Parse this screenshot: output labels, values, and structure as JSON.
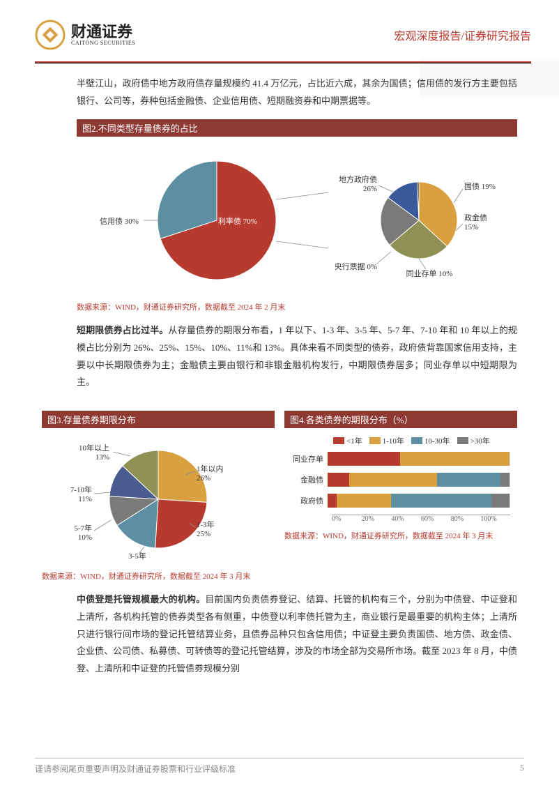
{
  "header": {
    "company_cn": "财通证券",
    "company_en": "CAITONG SECURITIES",
    "report_type": "宏观深度报告/证券研究报告"
  },
  "para1": "半壁江山，政府债中地方政府债存量规模约 41.4 万亿元，占比近六成，其余为国债；信用债的发行方主要包括银行、公司等，券种包括金融债、企业信用债、短期融资券和中期票据等。",
  "fig2": {
    "title": "图2.不同类型存量债券的占比",
    "caption": "数据来源：WIND，财通证券研究所，数据截至 2024 年 2 月末",
    "pie_left": {
      "slices": [
        {
          "label": "利率债 70%",
          "value": 70,
          "color": "#b73a2e"
        },
        {
          "label": "信用债 30%",
          "value": 30,
          "color": "#5b8fa1"
        }
      ]
    },
    "pie_right": {
      "slices": [
        {
          "label": "地方政府债 26%",
          "value": 26,
          "color": "#d9a03f"
        },
        {
          "label": "国债 19%",
          "value": 19,
          "color": "#8f9054"
        },
        {
          "label": "政金债 15%",
          "value": 15,
          "color": "#7a7a7a"
        },
        {
          "label": "央行票据 0%",
          "value": 0,
          "color": "#000"
        },
        {
          "label": "同业存单 10%",
          "value": 10,
          "color": "#3a5a9a"
        }
      ]
    }
  },
  "para2_bold": "短期限债券占比过半。",
  "para2": "从存量债券的期限分布看，1 年以下、1-3 年、3-5 年、5-7 年、7-10 年和 10 年以上的规模占比分别为 26%、25%、15%、10%、11%和 13%。具体来看不同类型的债券，政府债背靠国家信用支持，主要以中长期限债券为主；金融债主要由银行和非银金融机构发行，中期限债券居多；同业存单以中短期限为主。",
  "fig3": {
    "title": "图3.存量债券期限分布",
    "caption": "数据来源：WIND，财通证券研究所，数据截至 2024 年 3 月末",
    "slices": [
      {
        "label": "1年以内 26%",
        "value": 26,
        "color": "#d9a03f"
      },
      {
        "label": "1-3年 25%",
        "value": 25,
        "color": "#b73a2e"
      },
      {
        "label": "3-5年 15%",
        "value": 15,
        "color": "#5b8fa1"
      },
      {
        "label": "5-7年 10%",
        "value": 10,
        "color": "#7a7a7a"
      },
      {
        "label": "7-10年 11%",
        "value": 11,
        "color": "#4a5b8e"
      },
      {
        "label": "10年以上 13%",
        "value": 13,
        "color": "#8f9054"
      }
    ]
  },
  "fig4": {
    "title": "图4.各类债券的期限分布（%）",
    "caption": "数据来源：WIND，财通证券研究所，数据截至 2024 年 3 月末",
    "legend": [
      {
        "label": "<1年",
        "color": "#b73a2e"
      },
      {
        "label": "1-10年",
        "color": "#d9a03f"
      },
      {
        "label": "10-30年",
        "color": "#5b8fa1"
      },
      {
        "label": ">30年",
        "color": "#7a7a7a"
      }
    ],
    "rows": [
      {
        "label": "同业存单",
        "segs": [
          40,
          60,
          0,
          0
        ]
      },
      {
        "label": "金融债",
        "segs": [
          12,
          48,
          35,
          5
        ]
      },
      {
        "label": "政府债",
        "segs": [
          5,
          30,
          55,
          10
        ]
      }
    ],
    "xticks": [
      "0%",
      "20%",
      "40%",
      "60%",
      "80%",
      "100%"
    ]
  },
  "para3_bold": "中债登是托管规模最大的机构。",
  "para3": "目前国内负责债券登记、结算、托管的机构有三个，分别为中债登、中证登和上清所，各机构托管的债券类型各有侧重，中债登以利率债托管为主，商业银行是最重要的机构主体；上清所只进行银行间市场的登记托管结算业务，且债券品种只包含信用债；中证登主要负责国债、地方债、政金债、企业债、公司债、私募债、可转债等的登记托管结算，涉及的市场全部为交易所市场。截至 2023 年 8 月，中债登、上清所和中证登的托管债券规模分别",
  "footer": {
    "disclaimer": "谨请参阅尾页重要声明及财通证券股票和行业评级标准",
    "page": "5"
  }
}
